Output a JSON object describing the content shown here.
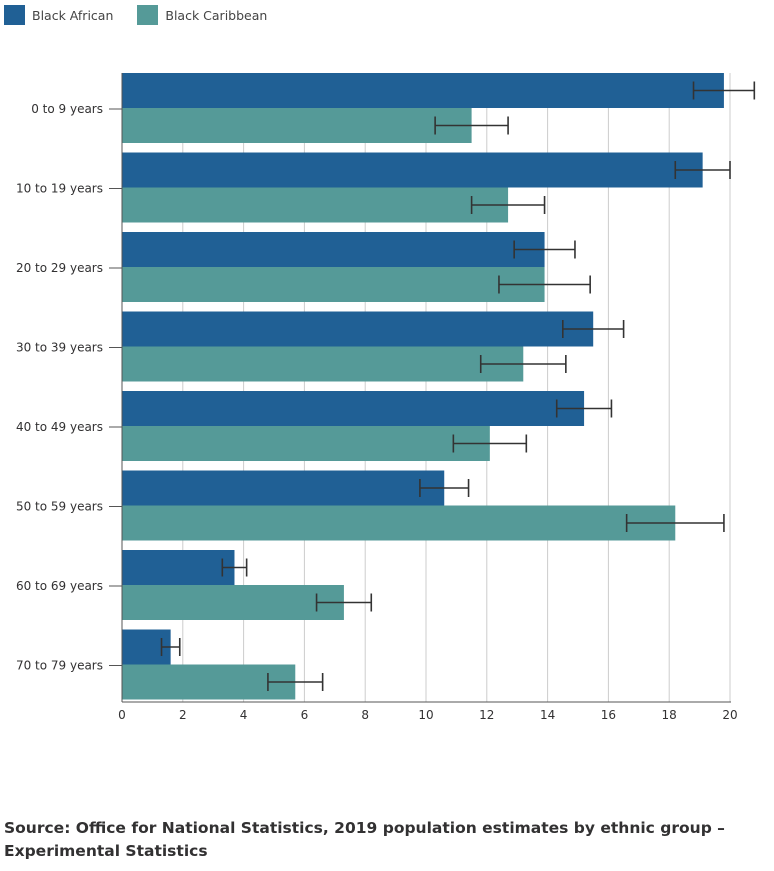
{
  "chart_data": {
    "type": "bar",
    "orientation": "horizontal",
    "title": "",
    "xlabel": "",
    "ylabel": "",
    "categories": [
      "0 to 9 years",
      "10 to 19 years",
      "20 to 29 years",
      "30 to 39 years",
      "40 to 49 years",
      "50 to 59 years",
      "60 to 69 years",
      "70 to 79 years"
    ],
    "series": [
      {
        "name": "Black African",
        "color": "#206095",
        "values": [
          19.8,
          19.1,
          13.9,
          15.5,
          15.2,
          10.6,
          3.7,
          1.6
        ],
        "error_low": [
          18.8,
          18.2,
          12.9,
          14.5,
          14.3,
          9.8,
          3.3,
          1.3
        ],
        "error_high": [
          20.8,
          20.0,
          14.9,
          16.5,
          16.1,
          11.4,
          4.1,
          1.9
        ]
      },
      {
        "name": "Black Caribbean",
        "color": "#559a98",
        "values": [
          11.5,
          12.7,
          13.9,
          13.2,
          12.1,
          18.2,
          7.3,
          5.7
        ],
        "error_low": [
          10.3,
          11.5,
          12.4,
          11.8,
          10.9,
          16.6,
          6.4,
          4.8
        ],
        "error_high": [
          12.7,
          13.9,
          15.4,
          14.6,
          13.3,
          19.8,
          8.2,
          6.6
        ]
      }
    ],
    "xlim": [
      0,
      20.8
    ],
    "xticks": [
      0,
      2,
      4,
      6,
      8,
      10,
      12,
      14,
      16,
      18,
      20
    ],
    "grid": true,
    "legend_position": "top-left"
  },
  "source": "Source: Office for National Statistics, 2019 population estimates by ethnic group – Experimental Statistics"
}
